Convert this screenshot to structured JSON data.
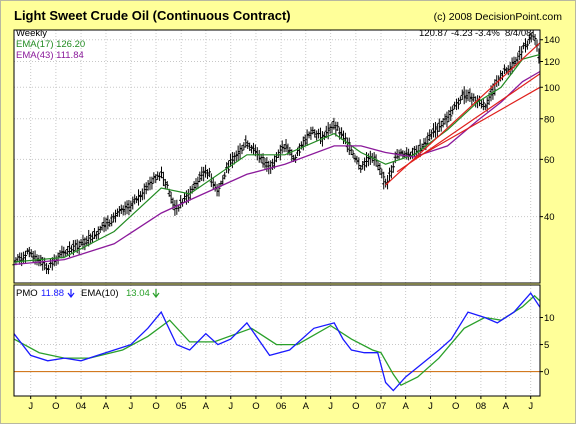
{
  "title": "Light Sweet Crude Oil (Continuous Contract)",
  "copyright": "(c) 2008 DecisionPoint.com",
  "price_panel": {
    "period": "Weekly",
    "last_price": "120.87",
    "change": "-4.23",
    "change_pct": "-3.4%",
    "date": "8/4/08",
    "ema_short_label": "EMA(17) 126.20",
    "ema_long_label": "EMA(43) 111.84",
    "y_ticks": [
      "40",
      "60",
      "80",
      "100",
      "120",
      "140"
    ]
  },
  "pmo_panel": {
    "pmo_label": "PMO",
    "pmo_value": "11.88",
    "ema_label": "EMA(10)",
    "ema_value": "13.04",
    "y_ticks": [
      "0",
      "5",
      "10"
    ]
  },
  "x_ticks": [
    "J",
    "O",
    "04",
    "A",
    "J",
    "O",
    "05",
    "A",
    "J",
    "O",
    "06",
    "A",
    "J",
    "O",
    "07",
    "A",
    "J",
    "O",
    "08",
    "A",
    "J"
  ],
  "colors": {
    "background": "#ffff99",
    "plot_bg": "#ffffff",
    "bars": "#000000",
    "ema_short": "#228b22",
    "ema_long": "#8b1a9b",
    "trendline": "#e0201c",
    "pmo": "#1a1aff",
    "pmo_ema": "#2aa02a",
    "zero_line": "#cc6600"
  },
  "chart_data": [
    {
      "type": "ohlc",
      "title": "Light Sweet Crude Oil (Continuous Contract)",
      "ylim": [
        25,
        150
      ],
      "y_scale": "log",
      "x_range": [
        "2003-05-01",
        "2008-08-04"
      ],
      "grid": true,
      "legend": "top-left",
      "price_path": [
        [
          "2003-05-01",
          29
        ],
        [
          "2003-07-01",
          31
        ],
        [
          "2003-09-01",
          28
        ],
        [
          "2003-11-01",
          31
        ],
        [
          "2004-01-01",
          33
        ],
        [
          "2004-03-01",
          36
        ],
        [
          "2004-05-01",
          40
        ],
        [
          "2004-07-01",
          43
        ],
        [
          "2004-08-15",
          48
        ],
        [
          "2004-10-20",
          55
        ],
        [
          "2004-12-10",
          42
        ],
        [
          "2005-02-01",
          47
        ],
        [
          "2005-04-01",
          56
        ],
        [
          "2005-05-15",
          48
        ],
        [
          "2005-07-01",
          59
        ],
        [
          "2005-08-29",
          68
        ],
        [
          "2005-10-15",
          61
        ],
        [
          "2005-11-20",
          57
        ],
        [
          "2006-01-15",
          66
        ],
        [
          "2006-02-20",
          60
        ],
        [
          "2006-04-20",
          74
        ],
        [
          "2006-06-01",
          70
        ],
        [
          "2006-07-14",
          77
        ],
        [
          "2006-09-01",
          67
        ],
        [
          "2006-10-20",
          57
        ],
        [
          "2006-12-01",
          62
        ],
        [
          "2007-01-18",
          50
        ],
        [
          "2007-03-01",
          62
        ],
        [
          "2007-05-01",
          63
        ],
        [
          "2007-06-01",
          66
        ],
        [
          "2007-08-01",
          76
        ],
        [
          "2007-09-01",
          80
        ],
        [
          "2007-11-05",
          96
        ],
        [
          "2007-12-20",
          91
        ],
        [
          "2008-01-20",
          88
        ],
        [
          "2008-03-15",
          109
        ],
        [
          "2008-05-01",
          118
        ],
        [
          "2008-06-01",
          130
        ],
        [
          "2008-07-11",
          145
        ],
        [
          "2008-08-04",
          121
        ]
      ],
      "series": [
        {
          "name": "EMA(17)",
          "points": [
            [
              "2003-05-01",
              29
            ],
            [
              "2003-11-01",
              30
            ],
            [
              "2004-05-01",
              36
            ],
            [
              "2004-10-20",
              49
            ],
            [
              "2005-02-01",
              47
            ],
            [
              "2005-08-29",
              62
            ],
            [
              "2006-01-15",
              62
            ],
            [
              "2006-07-14",
              72
            ],
            [
              "2006-10-20",
              63
            ],
            [
              "2007-01-18",
              58
            ],
            [
              "2007-05-01",
              62
            ],
            [
              "2007-09-01",
              74
            ],
            [
              "2007-12-20",
              90
            ],
            [
              "2008-03-15",
              100
            ],
            [
              "2008-06-01",
              122
            ],
            [
              "2008-08-04",
              126.2
            ]
          ]
        },
        {
          "name": "EMA(43)",
          "points": [
            [
              "2003-05-01",
              28.5
            ],
            [
              "2003-11-01",
              29.5
            ],
            [
              "2004-05-01",
              33
            ],
            [
              "2004-10-20",
              41
            ],
            [
              "2005-02-01",
              45
            ],
            [
              "2005-08-29",
              54
            ],
            [
              "2006-01-15",
              58
            ],
            [
              "2006-07-14",
              66
            ],
            [
              "2006-10-20",
              66
            ],
            [
              "2007-01-18",
              63
            ],
            [
              "2007-05-01",
              61
            ],
            [
              "2007-09-01",
              66
            ],
            [
              "2007-12-20",
              79
            ],
            [
              "2008-03-15",
              90
            ],
            [
              "2008-06-01",
              104
            ],
            [
              "2008-08-04",
              111.84
            ]
          ]
        },
        {
          "name": "trendline-1",
          "points": [
            [
              "2007-01-18",
              50
            ],
            [
              "2008-08-04",
              137
            ]
          ]
        },
        {
          "name": "trendline-2",
          "points": [
            [
              "2007-03-01",
              55
            ],
            [
              "2008-08-04",
              110
            ]
          ]
        },
        {
          "name": "trendline-3",
          "points": [
            [
              "2007-05-01",
              60
            ],
            [
              "2008-08-04",
              100
            ]
          ]
        }
      ]
    },
    {
      "type": "line",
      "ylim": [
        -4.5,
        16
      ],
      "x_range": [
        "2003-05-01",
        "2008-08-04"
      ],
      "grid": true,
      "legend": "top-left",
      "series": [
        {
          "name": "PMO",
          "points": [
            [
              "2003-05-01",
              7
            ],
            [
              "2003-07-01",
              3
            ],
            [
              "2003-09-01",
              2
            ],
            [
              "2003-11-01",
              2.5
            ],
            [
              "2004-01-01",
              2
            ],
            [
              "2004-03-01",
              3
            ],
            [
              "2004-05-01",
              4
            ],
            [
              "2004-07-01",
              5
            ],
            [
              "2004-09-01",
              8
            ],
            [
              "2004-10-20",
              11
            ],
            [
              "2004-12-15",
              5
            ],
            [
              "2005-02-01",
              4
            ],
            [
              "2005-04-01",
              7
            ],
            [
              "2005-05-15",
              5
            ],
            [
              "2005-07-01",
              6
            ],
            [
              "2005-08-29",
              9
            ],
            [
              "2005-11-20",
              3
            ],
            [
              "2006-02-01",
              4
            ],
            [
              "2006-05-01",
              8
            ],
            [
              "2006-07-14",
              9
            ],
            [
              "2006-08-15",
              6
            ],
            [
              "2006-09-15",
              4
            ],
            [
              "2006-11-01",
              3.5
            ],
            [
              "2006-12-20",
              3.5
            ],
            [
              "2007-01-18",
              -2
            ],
            [
              "2007-02-15",
              -3.5
            ],
            [
              "2007-04-01",
              -1
            ],
            [
              "2007-06-01",
              1.5
            ],
            [
              "2007-08-01",
              4
            ],
            [
              "2007-09-15",
              6
            ],
            [
              "2007-11-15",
              11
            ],
            [
              "2008-01-15",
              10
            ],
            [
              "2008-03-01",
              9
            ],
            [
              "2008-05-01",
              11
            ],
            [
              "2008-07-01",
              14.5
            ],
            [
              "2008-08-04",
              11.88
            ]
          ]
        },
        {
          "name": "EMA(10)",
          "points": [
            [
              "2003-05-01",
              6
            ],
            [
              "2003-08-01",
              3.5
            ],
            [
              "2003-11-01",
              2.5
            ],
            [
              "2004-02-01",
              2.5
            ],
            [
              "2004-06-01",
              4
            ],
            [
              "2004-09-01",
              6.5
            ],
            [
              "2004-11-20",
              9.5
            ],
            [
              "2005-02-01",
              5.5
            ],
            [
              "2005-05-01",
              5.5
            ],
            [
              "2005-09-15",
              8
            ],
            [
              "2005-12-15",
              5
            ],
            [
              "2006-03-01",
              5
            ],
            [
              "2006-07-01",
              8.5
            ],
            [
              "2006-09-15",
              6
            ],
            [
              "2006-12-01",
              4
            ],
            [
              "2007-01-01",
              3.5
            ],
            [
              "2007-02-15",
              -0.5
            ],
            [
              "2007-03-15",
              -2.5
            ],
            [
              "2007-05-15",
              -1
            ],
            [
              "2007-08-01",
              2.5
            ],
            [
              "2007-11-01",
              8
            ],
            [
              "2008-01-15",
              10
            ],
            [
              "2008-03-15",
              9.5
            ],
            [
              "2008-06-01",
              12
            ],
            [
              "2008-07-15",
              14
            ],
            [
              "2008-08-04",
              13.04
            ]
          ]
        }
      ]
    }
  ]
}
